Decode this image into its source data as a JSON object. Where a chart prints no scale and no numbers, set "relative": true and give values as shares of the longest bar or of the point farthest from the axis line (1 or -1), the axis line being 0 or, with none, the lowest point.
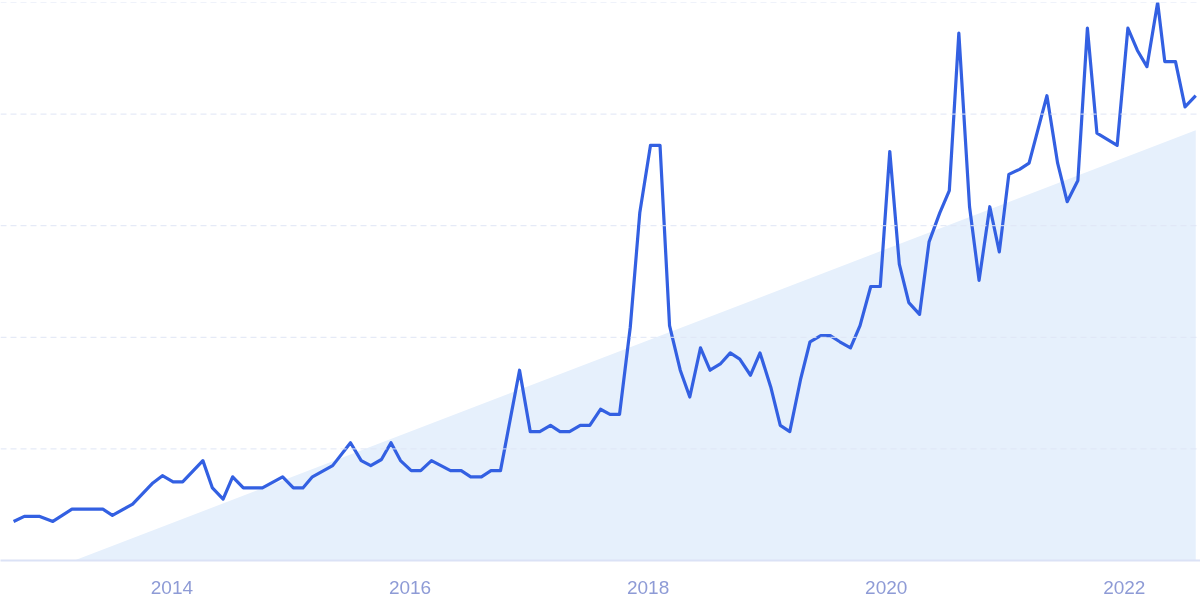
{
  "chart_data": {
    "type": "line",
    "relative": true,
    "grid": "y",
    "marker": "none",
    "line_style": "solid",
    "xlim": [
      2012.56,
      2022.64
    ],
    "xticks": [
      2014,
      2016,
      2018,
      2020,
      2022
    ],
    "series": [
      {
        "type": "area",
        "color": "#e6f0fc",
        "x": [
          2013.18,
          2022.6
        ],
        "values": [
          0,
          0.771
        ]
      },
      {
        "color": "#3360e2",
        "x": [
          2012.67,
          2012.76,
          2012.89,
          2013.0,
          2013.16,
          2013.42,
          2013.5,
          2013.67,
          2013.84,
          2013.92,
          2014.01,
          2014.09,
          2014.26,
          2014.34,
          2014.43,
          2014.51,
          2014.6,
          2014.76,
          2014.93,
          2015.02,
          2015.1,
          2015.18,
          2015.35,
          2015.5,
          2015.59,
          2015.67,
          2015.76,
          2015.84,
          2015.92,
          2016.01,
          2016.09,
          2016.18,
          2016.34,
          2016.43,
          2016.51,
          2016.6,
          2016.68,
          2016.76,
          2016.92,
          2017.01,
          2017.09,
          2017.18,
          2017.26,
          2017.34,
          2017.43,
          2017.51,
          2017.6,
          2017.68,
          2017.76,
          2017.85,
          2017.93,
          2018.02,
          2018.1,
          2018.18,
          2018.27,
          2018.35,
          2018.44,
          2018.52,
          2018.61,
          2018.69,
          2018.77,
          2018.86,
          2018.94,
          2019.03,
          2019.11,
          2019.19,
          2019.28,
          2019.36,
          2019.45,
          2019.53,
          2019.61,
          2019.7,
          2019.78,
          2019.87,
          2019.95,
          2020.03,
          2020.11,
          2020.19,
          2020.28,
          2020.36,
          2020.45,
          2020.53,
          2020.61,
          2020.7,
          2020.78,
          2020.87,
          2020.95,
          2021.03,
          2021.12,
          2021.2,
          2021.35,
          2021.44,
          2021.52,
          2021.61,
          2021.69,
          2021.77,
          2021.94,
          2022.03,
          2022.11,
          2022.19,
          2022.28,
          2022.34,
          2022.43,
          2022.51,
          2022.6
        ],
        "values": [
          0.07,
          0.079,
          0.079,
          0.07,
          0.092,
          0.092,
          0.081,
          0.101,
          0.139,
          0.152,
          0.141,
          0.141,
          0.179,
          0.13,
          0.11,
          0.15,
          0.13,
          0.13,
          0.15,
          0.13,
          0.13,
          0.15,
          0.17,
          0.211,
          0.179,
          0.17,
          0.181,
          0.211,
          0.179,
          0.161,
          0.161,
          0.179,
          0.161,
          0.161,
          0.15,
          0.15,
          0.161,
          0.161,
          0.341,
          0.231,
          0.231,
          0.242,
          0.231,
          0.231,
          0.242,
          0.242,
          0.271,
          0.262,
          0.262,
          0.418,
          0.623,
          0.744,
          0.744,
          0.421,
          0.341,
          0.293,
          0.381,
          0.341,
          0.353,
          0.372,
          0.361,
          0.332,
          0.372,
          0.311,
          0.242,
          0.231,
          0.324,
          0.392,
          0.403,
          0.403,
          0.392,
          0.381,
          0.421,
          0.491,
          0.491,
          0.733,
          0.531,
          0.462,
          0.441,
          0.571,
          0.623,
          0.663,
          0.945,
          0.634,
          0.502,
          0.634,
          0.553,
          0.692,
          0.701,
          0.712,
          0.833,
          0.712,
          0.643,
          0.681,
          0.954,
          0.766,
          0.744,
          0.954,
          0.914,
          0.885,
          1.0,
          0.894,
          0.894,
          0.813,
          0.833
        ]
      }
    ]
  }
}
